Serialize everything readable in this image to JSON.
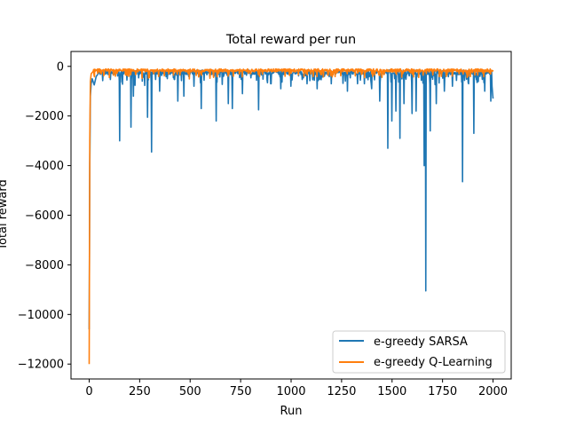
{
  "chart_data": {
    "type": "line",
    "title": "Total reward per run",
    "xlabel": "Run",
    "ylabel": "Total reward",
    "xlim": [
      -90,
      2090
    ],
    "ylim": [
      -12600,
      600
    ],
    "xticks": [
      0,
      250,
      500,
      750,
      1000,
      1250,
      1500,
      1750,
      2000
    ],
    "yticks": [
      0,
      -2000,
      -4000,
      -6000,
      -8000,
      -10000,
      -12000
    ],
    "xtick_labels": [
      "0",
      "250",
      "500",
      "750",
      "1000",
      "1250",
      "1500",
      "1750",
      "2000"
    ],
    "ytick_labels": [
      "0",
      "−2000",
      "−4000",
      "−6000",
      "−8000",
      "−10000",
      "−12000"
    ],
    "grid": false,
    "legend_position": "lower-right",
    "series": [
      {
        "name": "e-greedy SARSA",
        "color": "#1f77b4",
        "baseline": -150,
        "start": [
          [
            0,
            -10600
          ],
          [
            3,
            -4000
          ],
          [
            6,
            -1200
          ],
          [
            10,
            -700
          ],
          [
            15,
            -500
          ],
          [
            25,
            -750
          ],
          [
            35,
            -400
          ],
          [
            45,
            -300
          ]
        ],
        "spikes": [
          [
            152,
            -3000
          ],
          [
            208,
            -2450
          ],
          [
            220,
            -1200
          ],
          [
            290,
            -2050
          ],
          [
            310,
            -3450
          ],
          [
            350,
            -1000
          ],
          [
            440,
            -1400
          ],
          [
            470,
            -1200
          ],
          [
            520,
            -800
          ],
          [
            555,
            -1700
          ],
          [
            630,
            -2200
          ],
          [
            690,
            -1500
          ],
          [
            710,
            -1700
          ],
          [
            760,
            -1100
          ],
          [
            840,
            -1750
          ],
          [
            900,
            -700
          ],
          [
            950,
            -900
          ],
          [
            1000,
            -800
          ],
          [
            1080,
            -700
          ],
          [
            1130,
            -900
          ],
          [
            1200,
            -700
          ],
          [
            1280,
            -1000
          ],
          [
            1330,
            -700
          ],
          [
            1400,
            -900
          ],
          [
            1440,
            -1400
          ],
          [
            1480,
            -3300
          ],
          [
            1500,
            -2200
          ],
          [
            1520,
            -1800
          ],
          [
            1540,
            -2900
          ],
          [
            1560,
            -1500
          ],
          [
            1600,
            -1900
          ],
          [
            1620,
            -1800
          ],
          [
            1660,
            -4000
          ],
          [
            1667,
            -9050
          ],
          [
            1690,
            -2600
          ],
          [
            1720,
            -1500
          ],
          [
            1760,
            -1000
          ],
          [
            1800,
            -800
          ],
          [
            1850,
            -4650
          ],
          [
            1880,
            -700
          ],
          [
            1905,
            -2700
          ],
          [
            1960,
            -1000
          ],
          [
            1990,
            -1400
          ]
        ],
        "end": [
          [
            1995,
            -800
          ],
          [
            2000,
            -1300
          ]
        ]
      },
      {
        "name": "e-greedy Q-Learning",
        "color": "#ff7f0e",
        "baseline": -100,
        "start": [
          [
            0,
            -12000
          ],
          [
            3,
            -3000
          ],
          [
            6,
            -600
          ],
          [
            10,
            -300
          ],
          [
            20,
            -200
          ]
        ],
        "spikes": [
          [
            60,
            -300
          ],
          [
            100,
            -450
          ],
          [
            180,
            -350
          ],
          [
            320,
            -300
          ],
          [
            450,
            -350
          ],
          [
            600,
            -300
          ],
          [
            800,
            -300
          ],
          [
            1000,
            -280
          ],
          [
            1200,
            -300
          ],
          [
            1400,
            -300
          ],
          [
            1600,
            -320
          ],
          [
            1800,
            -300
          ],
          [
            1950,
            -280
          ]
        ],
        "end": [
          [
            2000,
            -150
          ]
        ]
      }
    ]
  }
}
